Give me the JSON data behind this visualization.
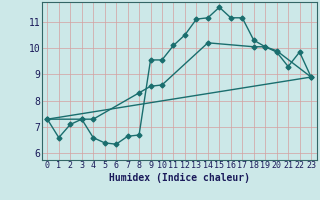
{
  "title": "",
  "xlabel": "Humidex (Indice chaleur)",
  "bg_color": "#cce8e8",
  "grid_color": "#d4a0a0",
  "line_color": "#1a6e6e",
  "markersize": 2.5,
  "linewidth": 1.0,
  "xlim": [
    -0.5,
    23.5
  ],
  "ylim": [
    5.75,
    11.75
  ],
  "xticks": [
    0,
    1,
    2,
    3,
    4,
    5,
    6,
    7,
    8,
    9,
    10,
    11,
    12,
    13,
    14,
    15,
    16,
    17,
    18,
    19,
    20,
    21,
    22,
    23
  ],
  "yticks": [
    6,
    7,
    8,
    9,
    10,
    11
  ],
  "line1_x": [
    0,
    1,
    2,
    3,
    4,
    5,
    6,
    7,
    8,
    9,
    10,
    11,
    12,
    13,
    14,
    15,
    16,
    17,
    18,
    19,
    20,
    21,
    22,
    23
  ],
  "line1_y": [
    7.3,
    6.6,
    7.1,
    7.3,
    6.6,
    6.4,
    6.35,
    6.65,
    6.7,
    9.55,
    9.55,
    10.1,
    10.5,
    11.1,
    11.15,
    11.55,
    11.15,
    11.15,
    10.3,
    10.05,
    9.85,
    9.3,
    9.85,
    8.9
  ],
  "line2_x": [
    0,
    3,
    4,
    8,
    9,
    10,
    14,
    18,
    19,
    20,
    23
  ],
  "line2_y": [
    7.3,
    7.3,
    7.3,
    8.3,
    8.55,
    8.6,
    10.2,
    10.05,
    10.05,
    9.9,
    8.9
  ],
  "line3_x": [
    0,
    23
  ],
  "line3_y": [
    7.3,
    8.9
  ]
}
